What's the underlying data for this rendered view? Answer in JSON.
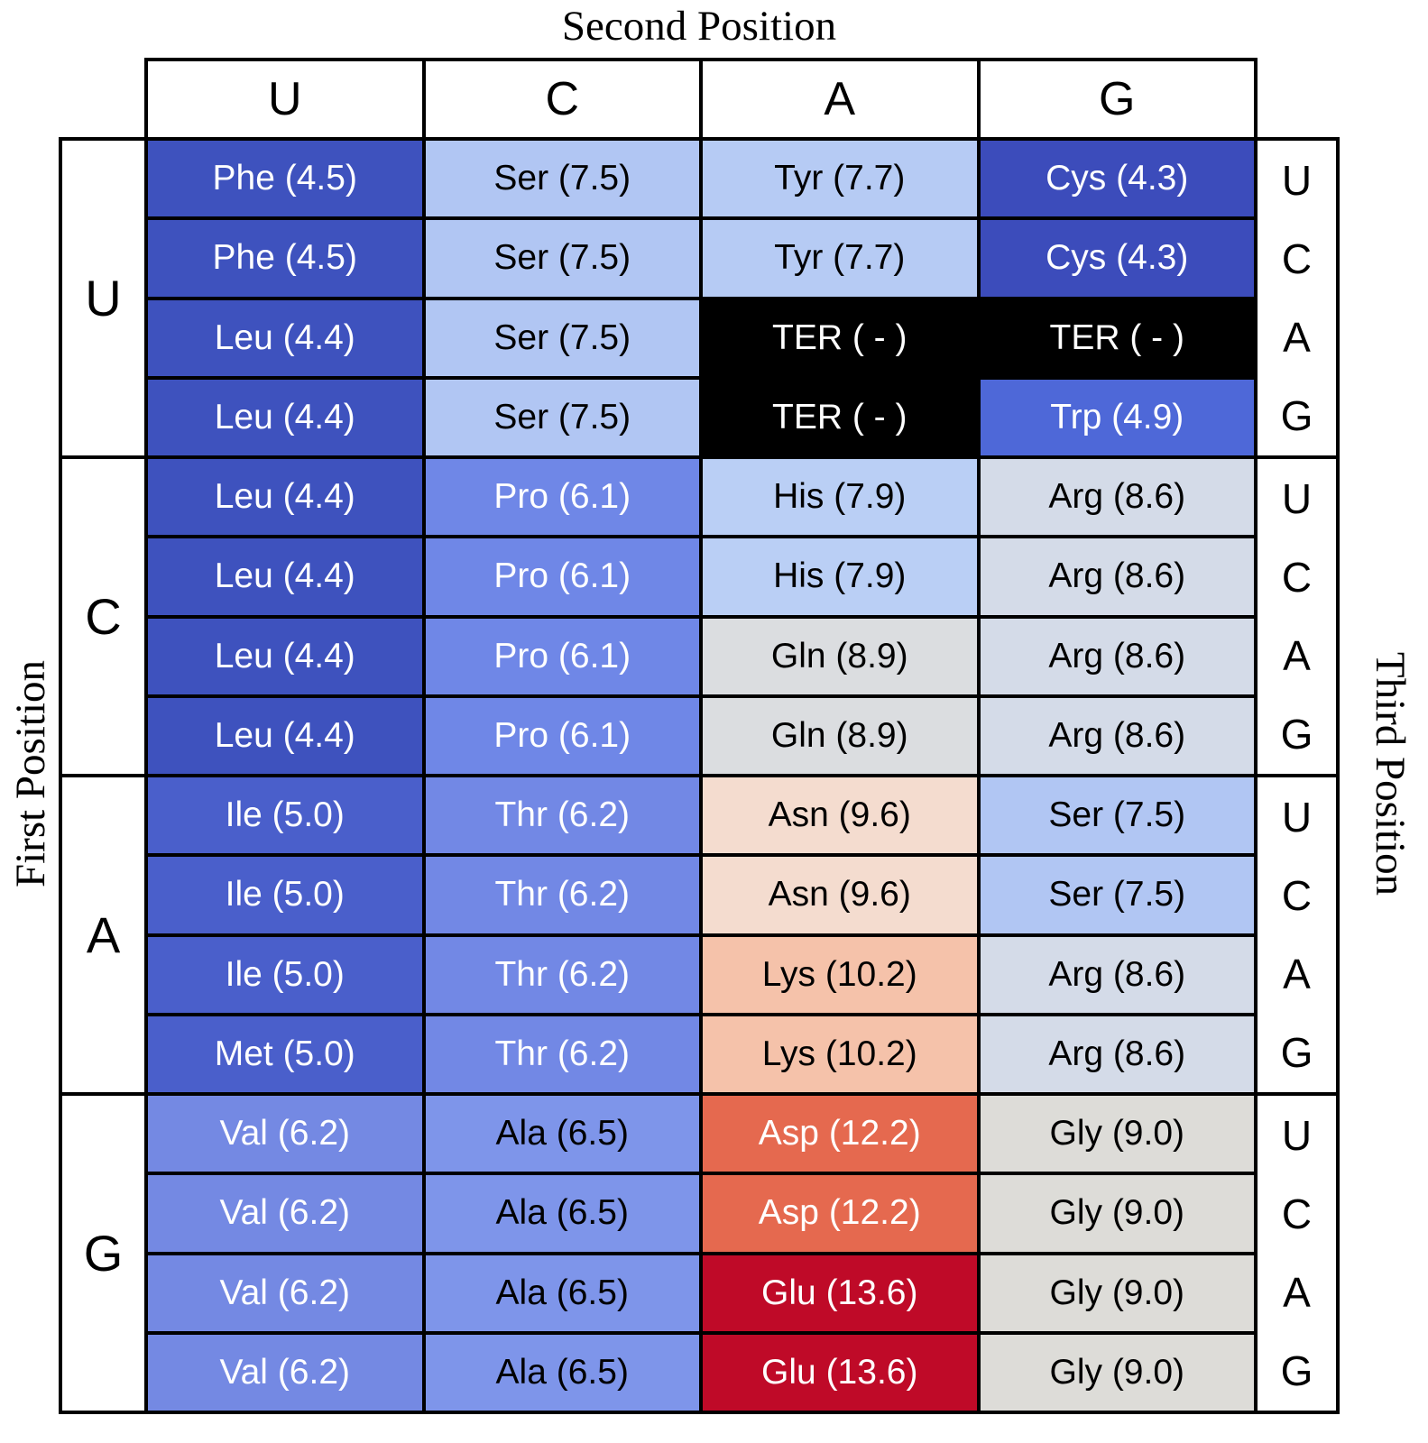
{
  "titles": {
    "top": "Second Position",
    "left": "First Position",
    "right": "Third Position"
  },
  "chart_data": {
    "type": "table",
    "title": "Second Position",
    "xlabel": "Second Position",
    "ylabel_left": "First Position",
    "ylabel_right": "Third Position",
    "columns": [
      "U",
      "C",
      "A",
      "G"
    ],
    "row_groups": [
      {
        "first_position": "U",
        "rows": [
          {
            "third_position": "U",
            "cells": [
              {
                "aa": "Phe",
                "value": 4.5,
                "label": "Phe (4.5)"
              },
              {
                "aa": "Ser",
                "value": 7.5,
                "label": "Ser (7.5)"
              },
              {
                "aa": "Tyr",
                "value": 7.7,
                "label": "Tyr (7.7)"
              },
              {
                "aa": "Cys",
                "value": 4.3,
                "label": "Cys (4.3)"
              }
            ]
          },
          {
            "third_position": "C",
            "cells": [
              {
                "aa": "Phe",
                "value": 4.5,
                "label": "Phe (4.5)"
              },
              {
                "aa": "Ser",
                "value": 7.5,
                "label": "Ser (7.5)"
              },
              {
                "aa": "Tyr",
                "value": 7.7,
                "label": "Tyr (7.7)"
              },
              {
                "aa": "Cys",
                "value": 4.3,
                "label": "Cys (4.3)"
              }
            ]
          },
          {
            "third_position": "A",
            "cells": [
              {
                "aa": "Leu",
                "value": 4.4,
                "label": "Leu (4.4)"
              },
              {
                "aa": "Ser",
                "value": 7.5,
                "label": "Ser (7.5)"
              },
              {
                "aa": "TER",
                "value": null,
                "label": "TER ( - )"
              },
              {
                "aa": "TER",
                "value": null,
                "label": "TER ( - )"
              }
            ]
          },
          {
            "third_position": "G",
            "cells": [
              {
                "aa": "Leu",
                "value": 4.4,
                "label": "Leu (4.4)"
              },
              {
                "aa": "Ser",
                "value": 7.5,
                "label": "Ser (7.5)"
              },
              {
                "aa": "TER",
                "value": null,
                "label": "TER ( - )"
              },
              {
                "aa": "Trp",
                "value": 4.9,
                "label": "Trp (4.9)"
              }
            ]
          }
        ]
      },
      {
        "first_position": "C",
        "rows": [
          {
            "third_position": "U",
            "cells": [
              {
                "aa": "Leu",
                "value": 4.4,
                "label": "Leu (4.4)"
              },
              {
                "aa": "Pro",
                "value": 6.1,
                "label": "Pro (6.1)"
              },
              {
                "aa": "His",
                "value": 7.9,
                "label": "His (7.9)"
              },
              {
                "aa": "Arg",
                "value": 8.6,
                "label": "Arg (8.6)"
              }
            ]
          },
          {
            "third_position": "C",
            "cells": [
              {
                "aa": "Leu",
                "value": 4.4,
                "label": "Leu (4.4)"
              },
              {
                "aa": "Pro",
                "value": 6.1,
                "label": "Pro (6.1)"
              },
              {
                "aa": "His",
                "value": 7.9,
                "label": "His (7.9)"
              },
              {
                "aa": "Arg",
                "value": 8.6,
                "label": "Arg (8.6)"
              }
            ]
          },
          {
            "third_position": "A",
            "cells": [
              {
                "aa": "Leu",
                "value": 4.4,
                "label": "Leu (4.4)"
              },
              {
                "aa": "Pro",
                "value": 6.1,
                "label": "Pro (6.1)"
              },
              {
                "aa": "Gln",
                "value": 8.9,
                "label": "Gln (8.9)"
              },
              {
                "aa": "Arg",
                "value": 8.6,
                "label": "Arg (8.6)"
              }
            ]
          },
          {
            "third_position": "G",
            "cells": [
              {
                "aa": "Leu",
                "value": 4.4,
                "label": "Leu (4.4)"
              },
              {
                "aa": "Pro",
                "value": 6.1,
                "label": "Pro (6.1)"
              },
              {
                "aa": "Gln",
                "value": 8.9,
                "label": "Gln (8.9)"
              },
              {
                "aa": "Arg",
                "value": 8.6,
                "label": "Arg (8.6)"
              }
            ]
          }
        ]
      },
      {
        "first_position": "A",
        "rows": [
          {
            "third_position": "U",
            "cells": [
              {
                "aa": "Ile",
                "value": 5.0,
                "label": "Ile (5.0)"
              },
              {
                "aa": "Thr",
                "value": 6.2,
                "label": "Thr (6.2)"
              },
              {
                "aa": "Asn",
                "value": 9.6,
                "label": "Asn (9.6)"
              },
              {
                "aa": "Ser",
                "value": 7.5,
                "label": "Ser (7.5)"
              }
            ]
          },
          {
            "third_position": "C",
            "cells": [
              {
                "aa": "Ile",
                "value": 5.0,
                "label": "Ile (5.0)"
              },
              {
                "aa": "Thr",
                "value": 6.2,
                "label": "Thr (6.2)"
              },
              {
                "aa": "Asn",
                "value": 9.6,
                "label": "Asn (9.6)"
              },
              {
                "aa": "Ser",
                "value": 7.5,
                "label": "Ser (7.5)"
              }
            ]
          },
          {
            "third_position": "A",
            "cells": [
              {
                "aa": "Ile",
                "value": 5.0,
                "label": "Ile (5.0)"
              },
              {
                "aa": "Thr",
                "value": 6.2,
                "label": "Thr (6.2)"
              },
              {
                "aa": "Lys",
                "value": 10.2,
                "label": "Lys (10.2)"
              },
              {
                "aa": "Arg",
                "value": 8.6,
                "label": "Arg (8.6)"
              }
            ]
          },
          {
            "third_position": "G",
            "cells": [
              {
                "aa": "Met",
                "value": 5.0,
                "label": "Met (5.0)"
              },
              {
                "aa": "Thr",
                "value": 6.2,
                "label": "Thr (6.2)"
              },
              {
                "aa": "Lys",
                "value": 10.2,
                "label": "Lys (10.2)"
              },
              {
                "aa": "Arg",
                "value": 8.6,
                "label": "Arg (8.6)"
              }
            ]
          }
        ]
      },
      {
        "first_position": "G",
        "rows": [
          {
            "third_position": "U",
            "cells": [
              {
                "aa": "Val",
                "value": 6.2,
                "label": "Val (6.2)"
              },
              {
                "aa": "Ala",
                "value": 6.5,
                "label": "Ala (6.5)"
              },
              {
                "aa": "Asp",
                "value": 12.2,
                "label": "Asp (12.2)"
              },
              {
                "aa": "Gly",
                "value": 9.0,
                "label": "Gly (9.0)"
              }
            ]
          },
          {
            "third_position": "C",
            "cells": [
              {
                "aa": "Val",
                "value": 6.2,
                "label": "Val (6.2)"
              },
              {
                "aa": "Ala",
                "value": 6.5,
                "label": "Ala (6.5)"
              },
              {
                "aa": "Asp",
                "value": 12.2,
                "label": "Asp (12.2)"
              },
              {
                "aa": "Gly",
                "value": 9.0,
                "label": "Gly (9.0)"
              }
            ]
          },
          {
            "third_position": "A",
            "cells": [
              {
                "aa": "Val",
                "value": 6.2,
                "label": "Val (6.2)"
              },
              {
                "aa": "Ala",
                "value": 6.5,
                "label": "Ala (6.5)"
              },
              {
                "aa": "Glu",
                "value": 13.6,
                "label": "Glu (13.6)"
              },
              {
                "aa": "Gly",
                "value": 9.0,
                "label": "Gly (9.0)"
              }
            ]
          },
          {
            "third_position": "G",
            "cells": [
              {
                "aa": "Val",
                "value": 6.2,
                "label": "Val (6.2)"
              },
              {
                "aa": "Ala",
                "value": 6.5,
                "label": "Ala (6.5)"
              },
              {
                "aa": "Glu",
                "value": 13.6,
                "label": "Glu (13.6)"
              },
              {
                "aa": "Gly",
                "value": 9.0,
                "label": "Gly (9.0)"
              }
            ]
          }
        ]
      }
    ],
    "cell_colors": {
      "Phe": "#3E52BE",
      "Leu": "#3E52BE",
      "Ser": "#B1C6F3",
      "Tyr": "#B6CBF4",
      "Cys": "#3C4CBB",
      "TER": "#000000",
      "Trp": "#4E68D8",
      "Pro": "#6F87E7",
      "His": "#BACFF5",
      "Arg": "#D4DBE8",
      "Gln": "#DBDDE0",
      "Ile": "#4A5FCB",
      "Met": "#4A5FCB",
      "Thr": "#7288E5",
      "Asn": "#F4DCCF",
      "Lys": "#F5C2AA",
      "Val": "#7489E3",
      "Ala": "#7E95EA",
      "Asp": "#E5694F",
      "Glu": "#BF0A28",
      "Gly": "#DDDCD8"
    },
    "text_colors": {
      "Phe": "#FFFFFF",
      "Leu": "#FFFFFF",
      "Ser": "#000000",
      "Tyr": "#000000",
      "Cys": "#FFFFFF",
      "TER": "#FFFFFF",
      "Trp": "#FFFFFF",
      "Pro": "#FFFFFF",
      "His": "#000000",
      "Arg": "#000000",
      "Gln": "#000000",
      "Ile": "#FFFFFF",
      "Met": "#FFFFFF",
      "Thr": "#FFFFFF",
      "Asn": "#000000",
      "Lys": "#000000",
      "Val": "#FFFFFF",
      "Ala": "#000000",
      "Asp": "#FFFFFF",
      "Glu": "#FFFFFF",
      "Gly": "#000000"
    }
  }
}
